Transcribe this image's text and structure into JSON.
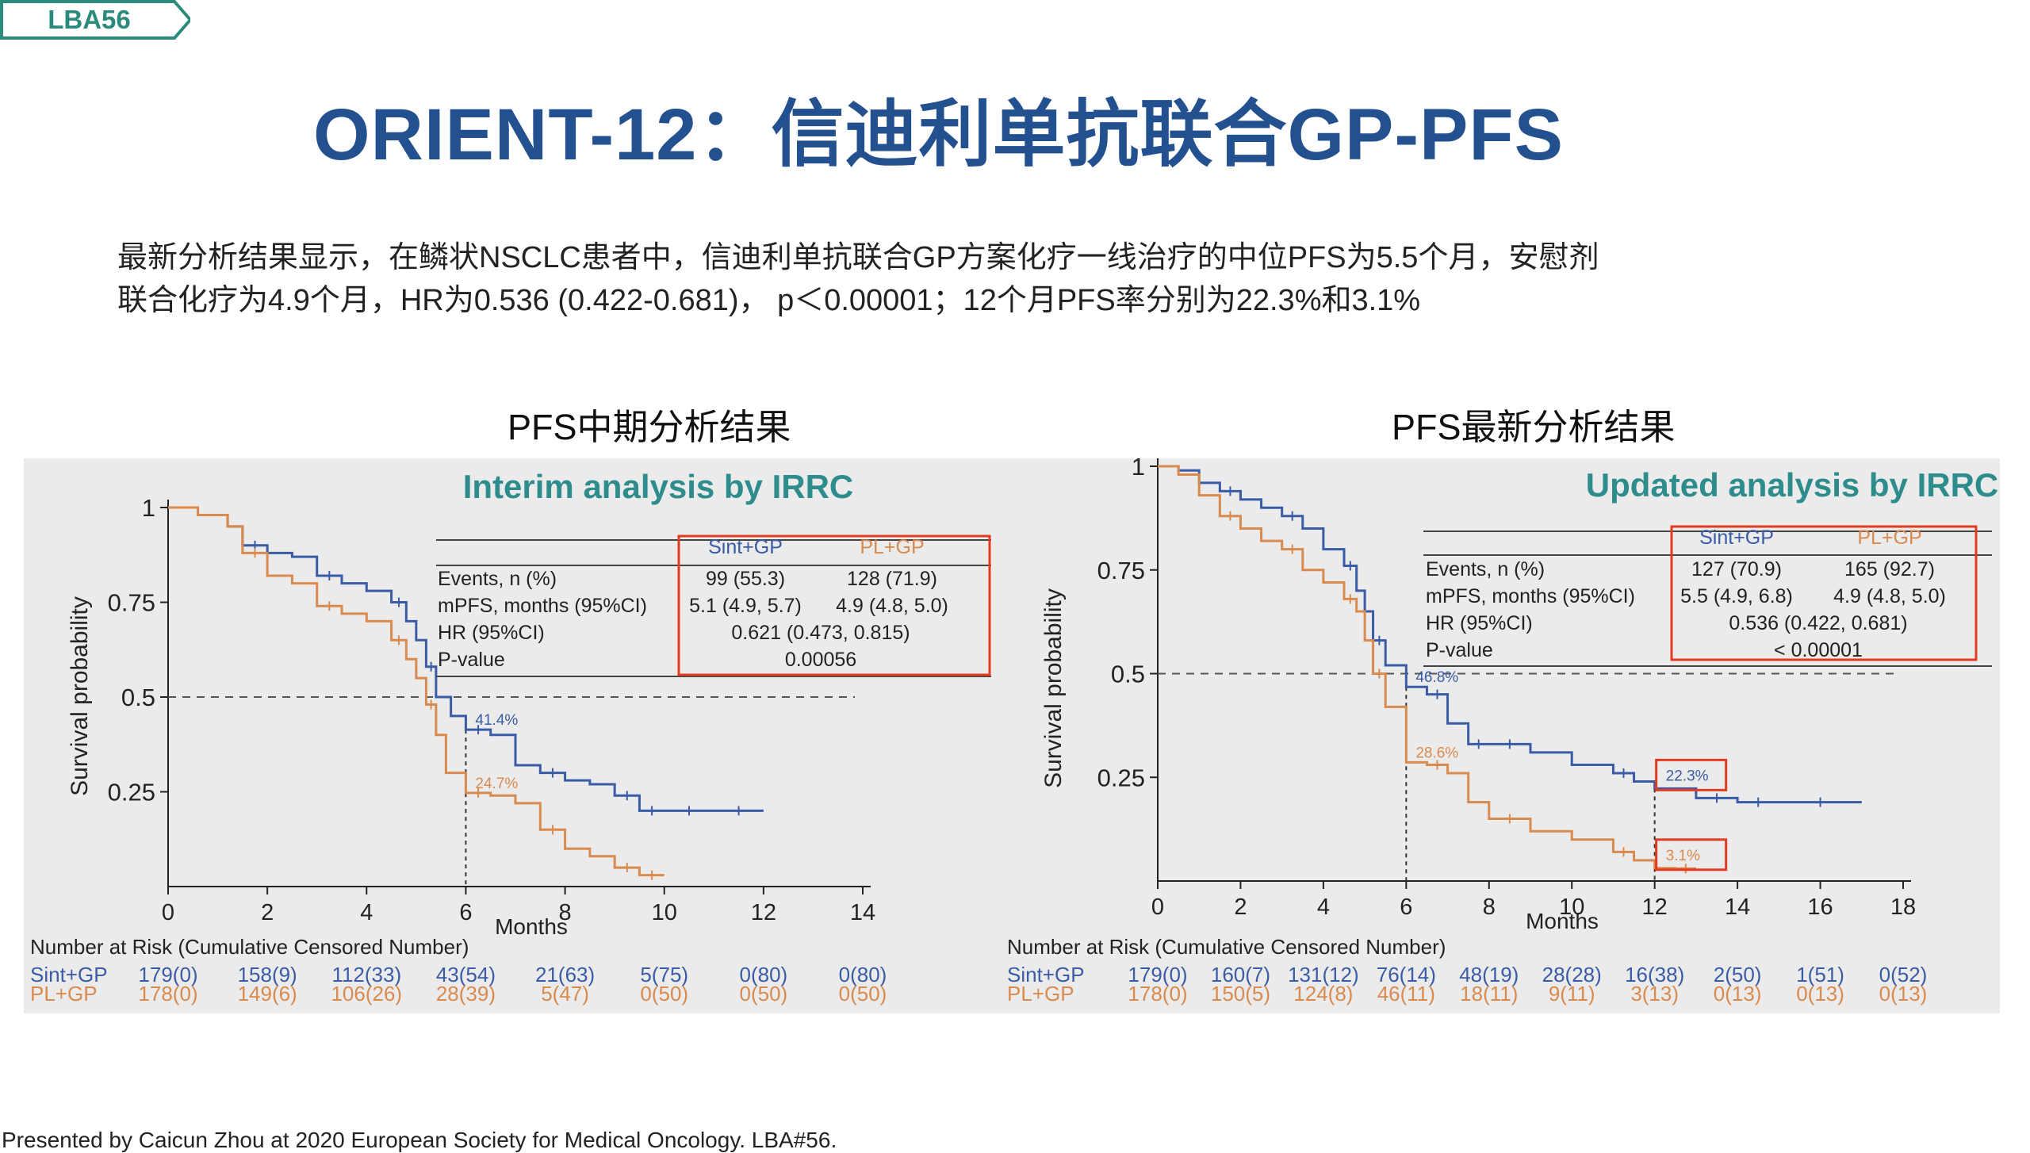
{
  "tag": {
    "label": "LBA56"
  },
  "title": "ORIENT-12：信迪利单抗联合GP-PFS",
  "summary": {
    "line1": "最新分析结果显示，在鳞状NSCLC患者中，信迪利单抗联合GP方案化疗一线治疗的中位PFS为5.5个月，安慰剂",
    "line2": "联合化疗为4.9个月，HR为0.536 (0.422-0.681)， p＜0.00001；12个月PFS率分别为22.3%和3.1%"
  },
  "footer": "Presented by Caicun Zhou at 2020 European Society for Medical Oncology. LBA#56.",
  "colors": {
    "sint": "#3a5ba5",
    "pl": "#d98a4e",
    "title": "#23508f",
    "panel_title": "#2e8c8c",
    "highlight": "#e23b1f"
  },
  "chart_data": [
    {
      "type": "line",
      "heading": "PFS中期分析结果",
      "title": "Interim analysis by IRRC",
      "xlabel": "Months",
      "ylabel": "Survival probability",
      "xlim": [
        0,
        14
      ],
      "ylim": [
        0,
        1
      ],
      "x_ticks": [
        "0",
        "2",
        "4",
        "6",
        "8",
        "10",
        "12",
        "14"
      ],
      "y_ticks": [
        "0.25",
        "0.5",
        "0.75",
        "1"
      ],
      "reference_line": 0.5,
      "table": {
        "headers": [
          "Sint+GP",
          "PL+GP"
        ],
        "rows": [
          {
            "label": "Events, n (%)",
            "a": "99 (55.3)",
            "b": "128 (71.9)"
          },
          {
            "label": "mPFS, months (95%CI)",
            "a": "5.1 (4.9, 5.7)",
            "b": "4.9 (4.8, 5.0)"
          },
          {
            "label": "HR (95%CI)",
            "merged": "0.621 (0.473, 0.815)"
          },
          {
            "label": "P-value",
            "merged": "0.00056"
          }
        ]
      },
      "annotations": [
        {
          "text": "41.4%",
          "x": 6,
          "y": 0.414,
          "series": "Sint+GP"
        },
        {
          "text": "24.7%",
          "x": 6,
          "y": 0.247,
          "series": "PL+GP"
        }
      ],
      "highlight_annotations": [],
      "risk_table": {
        "heading": "Number at Risk (Cumulative Censored Number)",
        "x": [
          0,
          2,
          4,
          6,
          8,
          10,
          12,
          14
        ],
        "rows": [
          {
            "name": "Sint+GP",
            "values": [
              "179(0)",
              "158(9)",
              "112(33)",
              "43(54)",
              "21(63)",
              "5(75)",
              "0(80)",
              "0(80)"
            ]
          },
          {
            "name": "PL+GP",
            "values": [
              "178(0)",
              "149(6)",
              "106(26)",
              "28(39)",
              "5(47)",
              "0(50)",
              "0(50)",
              "0(50)"
            ]
          }
        ]
      },
      "series": [
        {
          "name": "Sint+GP",
          "x": [
            0,
            0.6,
            1.2,
            1.5,
            2.0,
            2.5,
            3.0,
            3.5,
            4.0,
            4.5,
            4.8,
            5.0,
            5.2,
            5.4,
            5.7,
            6.0,
            6.5,
            7.0,
            7.5,
            8.0,
            8.5,
            9.0,
            9.5,
            10.0,
            11.0,
            12.0
          ],
          "y": [
            1.0,
            0.98,
            0.95,
            0.9,
            0.88,
            0.87,
            0.82,
            0.8,
            0.78,
            0.75,
            0.7,
            0.65,
            0.58,
            0.5,
            0.45,
            0.414,
            0.4,
            0.32,
            0.3,
            0.28,
            0.27,
            0.24,
            0.2,
            0.2,
            0.2,
            0.2
          ]
        },
        {
          "name": "PL+GP",
          "x": [
            0,
            0.6,
            1.2,
            1.5,
            2.0,
            2.5,
            3.0,
            3.5,
            4.0,
            4.5,
            4.8,
            5.0,
            5.2,
            5.4,
            5.6,
            6.0,
            6.5,
            7.0,
            7.5,
            8.0,
            8.5,
            9.0,
            9.5,
            10.0
          ],
          "y": [
            1.0,
            0.98,
            0.95,
            0.88,
            0.82,
            0.8,
            0.74,
            0.72,
            0.7,
            0.65,
            0.6,
            0.55,
            0.48,
            0.4,
            0.3,
            0.247,
            0.24,
            0.22,
            0.15,
            0.1,
            0.08,
            0.05,
            0.03,
            0.03
          ]
        }
      ]
    },
    {
      "type": "line",
      "heading": "PFS最新分析结果",
      "title": "Updated analysis by IRRC",
      "xlabel": "Months",
      "ylabel": "Survival probability",
      "xlim": [
        0,
        18
      ],
      "ylim": [
        0,
        1
      ],
      "x_ticks": [
        "0",
        "2",
        "4",
        "6",
        "8",
        "10",
        "12",
        "14",
        "16",
        "18"
      ],
      "y_ticks": [
        "0.25",
        "0.5",
        "0.75",
        "1"
      ],
      "reference_line": 0.5,
      "table": {
        "headers": [
          "Sint+GP",
          "PL+GP"
        ],
        "rows": [
          {
            "label": "Events, n (%)",
            "a": "127 (70.9)",
            "b": "165 (92.7)"
          },
          {
            "label": "mPFS, months (95%CI)",
            "a": "5.5 (4.9, 6.8)",
            "b": "4.9 (4.8, 5.0)"
          },
          {
            "label": "HR (95%CI)",
            "merged": "0.536 (0.422, 0.681)"
          },
          {
            "label": "P-value",
            "merged": "< 0.00001"
          }
        ]
      },
      "annotations": [
        {
          "text": "46.8%",
          "x": 6,
          "y": 0.468,
          "series": "Sint+GP"
        },
        {
          "text": "28.6%",
          "x": 6,
          "y": 0.286,
          "series": "PL+GP"
        }
      ],
      "highlight_annotations": [
        {
          "text": "22.3%",
          "x": 12,
          "y": 0.223,
          "series": "Sint+GP"
        },
        {
          "text": "3.1%",
          "x": 12,
          "y": 0.031,
          "series": "PL+GP"
        }
      ],
      "risk_table": {
        "heading": "Number at Risk (Cumulative Censored Number)",
        "x": [
          0,
          2,
          4,
          6,
          8,
          10,
          12,
          14,
          16,
          18
        ],
        "rows": [
          {
            "name": "Sint+GP",
            "values": [
              "179(0)",
              "160(7)",
              "131(12)",
              "76(14)",
              "48(19)",
              "28(28)",
              "16(38)",
              "2(50)",
              "1(51)",
              "0(52)"
            ]
          },
          {
            "name": "PL+GP",
            "values": [
              "178(0)",
              "150(5)",
              "124(8)",
              "46(11)",
              "18(11)",
              "9(11)",
              "3(13)",
              "0(13)",
              "0(13)",
              "0(13)"
            ]
          }
        ]
      },
      "series": [
        {
          "name": "Sint+GP",
          "x": [
            0,
            0.5,
            1.0,
            1.5,
            2.0,
            2.5,
            3.0,
            3.5,
            4.0,
            4.5,
            4.8,
            5.0,
            5.2,
            5.5,
            6.0,
            6.5,
            7.0,
            7.5,
            8.0,
            9.0,
            10.0,
            11.0,
            11.5,
            12.0,
            13.0,
            14.0,
            15.0,
            17.0
          ],
          "y": [
            1.0,
            0.99,
            0.96,
            0.94,
            0.92,
            0.9,
            0.88,
            0.85,
            0.8,
            0.76,
            0.7,
            0.65,
            0.58,
            0.52,
            0.468,
            0.45,
            0.38,
            0.33,
            0.33,
            0.31,
            0.28,
            0.26,
            0.24,
            0.223,
            0.2,
            0.19,
            0.19,
            0.19
          ]
        },
        {
          "name": "PL+GP",
          "x": [
            0,
            0.5,
            1.0,
            1.5,
            2.0,
            2.5,
            3.0,
            3.5,
            4.0,
            4.5,
            4.8,
            5.0,
            5.2,
            5.5,
            6.0,
            6.5,
            7.0,
            7.5,
            8.0,
            9.0,
            10.0,
            11.0,
            11.5,
            12.0,
            12.5,
            13.0
          ],
          "y": [
            1.0,
            0.98,
            0.93,
            0.88,
            0.85,
            0.82,
            0.8,
            0.75,
            0.72,
            0.68,
            0.65,
            0.58,
            0.5,
            0.42,
            0.286,
            0.28,
            0.26,
            0.19,
            0.15,
            0.12,
            0.1,
            0.07,
            0.05,
            0.031,
            0.03,
            0.03
          ]
        }
      ]
    }
  ]
}
